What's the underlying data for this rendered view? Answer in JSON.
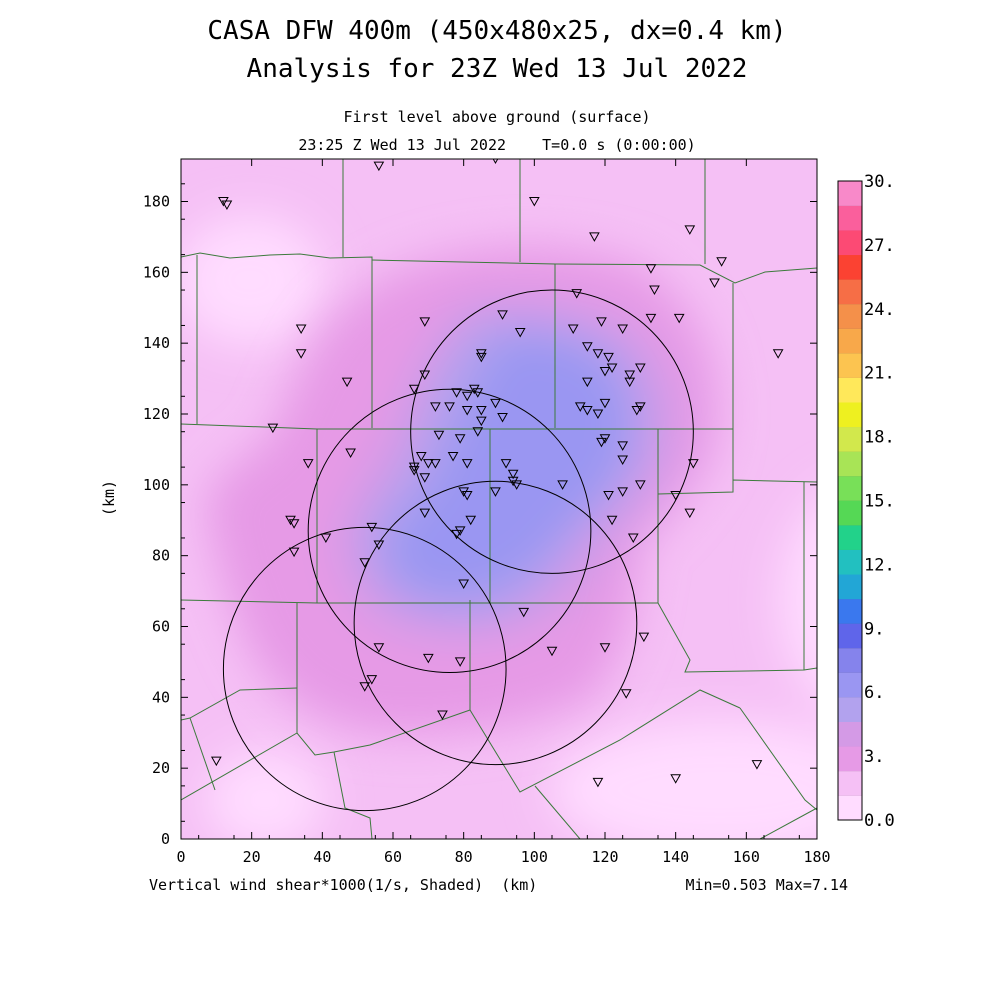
{
  "chart_data": {
    "type": "heatmap",
    "title_line1": "CASA DFW 400m (450x480x25, dx=0.4 km)",
    "title_line2": "Analysis for 23Z Wed 13 Jul 2022",
    "subtitle_line1": "First level above ground (surface)",
    "subtitle_line2": "23:25 Z Wed 13 Jul 2022    T=0.0 s (0:00:00)",
    "xlabel": "Vertical wind shear*1000(1/s, Shaded)  (km)",
    "ylabel": "(km)",
    "stats": "Min=0.503 Max=7.14",
    "xlim": [
      0,
      180
    ],
    "ylim": [
      0,
      192
    ],
    "x_ticks": [
      "0",
      "20",
      "40",
      "60",
      "80",
      "100",
      "120",
      "140",
      "160",
      "180"
    ],
    "y_ticks": [
      "0",
      "20",
      "40",
      "60",
      "80",
      "100",
      "120",
      "140",
      "160",
      "180"
    ],
    "colorbar": {
      "min": 0,
      "max": 30,
      "step": 1.5,
      "labels": [
        "0.0",
        "3.",
        "6.",
        "9.",
        "12.",
        "15.",
        "18.",
        "21.",
        "24.",
        "27.",
        "30."
      ],
      "colors": [
        "#ffdcff",
        "#f5c0f5",
        "#e69ae6",
        "#d49ae6",
        "#b2a2ee",
        "#9a96f2",
        "#8583ec",
        "#5f65ea",
        "#3a78ee",
        "#22a6d6",
        "#22c0c0",
        "#22d28a",
        "#55d855",
        "#78e058",
        "#a8e456",
        "#d2e84c",
        "#eef020",
        "#ffe85a",
        "#fcc450",
        "#f8a84a",
        "#f4904a",
        "#f66e46",
        "#fb4232",
        "#fc4a74",
        "#fa5f9c",
        "#f889c9"
      ]
    },
    "radar_circles": [
      {
        "cx": 105,
        "cy": 115,
        "r": 40
      },
      {
        "cx": 76,
        "cy": 87,
        "r": 40
      },
      {
        "cx": 89,
        "cy": 61,
        "r": 40
      },
      {
        "cx": 52,
        "cy": 48,
        "r": 40
      }
    ],
    "stations": [
      [
        12,
        180
      ],
      [
        13,
        179
      ],
      [
        56,
        190
      ],
      [
        89,
        192
      ],
      [
        100,
        180
      ],
      [
        117,
        170
      ],
      [
        144,
        172
      ],
      [
        153,
        163
      ],
      [
        151,
        157
      ],
      [
        133,
        161
      ],
      [
        134,
        155
      ],
      [
        34,
        144
      ],
      [
        34,
        137
      ],
      [
        47,
        129
      ],
      [
        69,
        146
      ],
      [
        112,
        154
      ],
      [
        119,
        146
      ],
      [
        125,
        144
      ],
      [
        133,
        147
      ],
      [
        141,
        147
      ],
      [
        169,
        137
      ],
      [
        85,
        136
      ],
      [
        85,
        137
      ],
      [
        91,
        148
      ],
      [
        96,
        143
      ],
      [
        111,
        144
      ],
      [
        115,
        139
      ],
      [
        118,
        137
      ],
      [
        120,
        132
      ],
      [
        121,
        136
      ],
      [
        122,
        133
      ],
      [
        127,
        131
      ],
      [
        127,
        129
      ],
      [
        130,
        133
      ],
      [
        66,
        127
      ],
      [
        69,
        131
      ],
      [
        78,
        126
      ],
      [
        83,
        127
      ],
      [
        84,
        126
      ],
      [
        72,
        122
      ],
      [
        76,
        122
      ],
      [
        81,
        121
      ],
      [
        81,
        125
      ],
      [
        85,
        121
      ],
      [
        85,
        118
      ],
      [
        89,
        123
      ],
      [
        91,
        119
      ],
      [
        113,
        122
      ],
      [
        115,
        121
      ],
      [
        118,
        120
      ],
      [
        120,
        123
      ],
      [
        115,
        129
      ],
      [
        129,
        121
      ],
      [
        130,
        122
      ],
      [
        119,
        112
      ],
      [
        120,
        113
      ],
      [
        125,
        111
      ],
      [
        125,
        107
      ],
      [
        26,
        116
      ],
      [
        36,
        106
      ],
      [
        48,
        109
      ],
      [
        68,
        108
      ],
      [
        66,
        104
      ],
      [
        66,
        105
      ],
      [
        70,
        106
      ],
      [
        72,
        106
      ],
      [
        69,
        102
      ],
      [
        73,
        114
      ],
      [
        79,
        113
      ],
      [
        84,
        115
      ],
      [
        81,
        106
      ],
      [
        77,
        108
      ],
      [
        92,
        106
      ],
      [
        94,
        103
      ],
      [
        94,
        101
      ],
      [
        95,
        100
      ],
      [
        108,
        100
      ],
      [
        121,
        97
      ],
      [
        125,
        98
      ],
      [
        130,
        100
      ],
      [
        140,
        97
      ],
      [
        145,
        106
      ],
      [
        144,
        92
      ],
      [
        80,
        98
      ],
      [
        81,
        97
      ],
      [
        89,
        98
      ],
      [
        69,
        92
      ],
      [
        78,
        86
      ],
      [
        79,
        87
      ],
      [
        82,
        90
      ],
      [
        31,
        90
      ],
      [
        32,
        89
      ],
      [
        32,
        81
      ],
      [
        41,
        85
      ],
      [
        54,
        88
      ],
      [
        56,
        83
      ],
      [
        52,
        78
      ],
      [
        122,
        90
      ],
      [
        128,
        85
      ],
      [
        80,
        72
      ],
      [
        97,
        64
      ],
      [
        131,
        57
      ],
      [
        56,
        54
      ],
      [
        70,
        51
      ],
      [
        79,
        50
      ],
      [
        105,
        53
      ],
      [
        120,
        54
      ],
      [
        54,
        45
      ],
      [
        52,
        43
      ],
      [
        126,
        41
      ],
      [
        74,
        35
      ],
      [
        118,
        16
      ],
      [
        140,
        17
      ],
      [
        163,
        21
      ],
      [
        10,
        22
      ]
    ]
  }
}
